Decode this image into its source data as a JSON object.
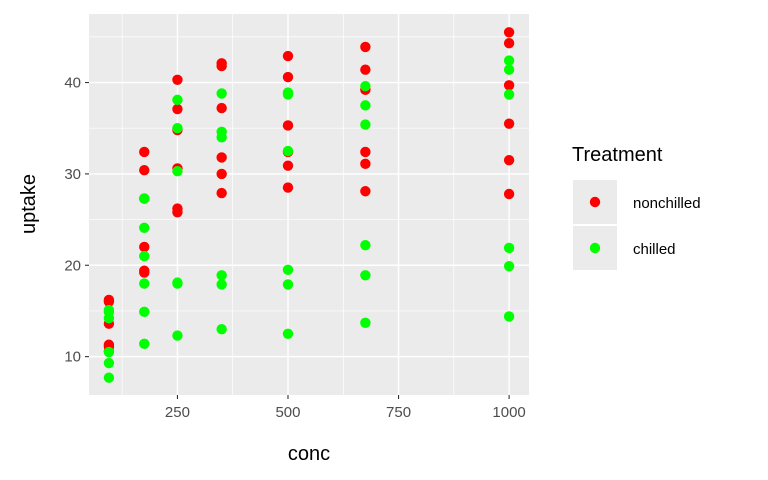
{
  "chart_data": {
    "type": "scatter",
    "xlabel": "conc",
    "ylabel": "uptake",
    "xlim": [
      50,
      1045
    ],
    "ylim": [
      5.8,
      47.5
    ],
    "x_ticks": [
      250,
      500,
      750,
      1000
    ],
    "x_minor_ticks": [
      125,
      375,
      625,
      875
    ],
    "y_ticks": [
      10,
      20,
      30,
      40
    ],
    "y_minor_ticks": [
      15,
      25,
      35,
      45
    ],
    "grid": true,
    "legend": {
      "title": "Treatment",
      "position": "right",
      "entries": [
        {
          "label": "nonchilled",
          "color": "#ff0000"
        },
        {
          "label": "chilled",
          "color": "#00ff00"
        }
      ]
    },
    "series": [
      {
        "name": "nonchilled",
        "color": "#ff0000",
        "points": [
          [
            95,
            16.0
          ],
          [
            95,
            13.6
          ],
          [
            95,
            16.2
          ],
          [
            95,
            11.3
          ],
          [
            95,
            10.6
          ],
          [
            95,
            11.1
          ],
          [
            175,
            30.4
          ],
          [
            175,
            27.3
          ],
          [
            175,
            32.4
          ],
          [
            175,
            19.4
          ],
          [
            175,
            19.2
          ],
          [
            175,
            22.0
          ],
          [
            250,
            34.8
          ],
          [
            250,
            37.1
          ],
          [
            250,
            40.3
          ],
          [
            250,
            25.8
          ],
          [
            250,
            26.2
          ],
          [
            250,
            30.6
          ],
          [
            350,
            37.2
          ],
          [
            350,
            41.8
          ],
          [
            350,
            42.1
          ],
          [
            350,
            30.0
          ],
          [
            350,
            27.9
          ],
          [
            350,
            31.8
          ],
          [
            500,
            35.3
          ],
          [
            500,
            40.6
          ],
          [
            500,
            42.9
          ],
          [
            500,
            32.4
          ],
          [
            500,
            28.5
          ],
          [
            500,
            30.9
          ],
          [
            675,
            39.2
          ],
          [
            675,
            41.4
          ],
          [
            675,
            43.9
          ],
          [
            675,
            31.1
          ],
          [
            675,
            28.1
          ],
          [
            675,
            32.4
          ],
          [
            1000,
            39.7
          ],
          [
            1000,
            44.3
          ],
          [
            1000,
            45.5
          ],
          [
            1000,
            31.5
          ],
          [
            1000,
            27.8
          ],
          [
            1000,
            35.5
          ]
        ]
      },
      {
        "name": "chilled",
        "color": "#00ff00",
        "points": [
          [
            95,
            14.2
          ],
          [
            95,
            15.1
          ],
          [
            95,
            14.9
          ],
          [
            95,
            10.5
          ],
          [
            95,
            9.3
          ],
          [
            95,
            7.7
          ],
          [
            175,
            24.1
          ],
          [
            175,
            21.0
          ],
          [
            175,
            18.0
          ],
          [
            175,
            14.9
          ],
          [
            175,
            11.4
          ],
          [
            175,
            27.3
          ],
          [
            250,
            30.3
          ],
          [
            250,
            38.1
          ],
          [
            250,
            35.0
          ],
          [
            250,
            18.1
          ],
          [
            250,
            18.0
          ],
          [
            250,
            12.3
          ],
          [
            350,
            34.6
          ],
          [
            350,
            34.0
          ],
          [
            350,
            38.8
          ],
          [
            350,
            18.9
          ],
          [
            350,
            17.9
          ],
          [
            350,
            13.0
          ],
          [
            500,
            32.5
          ],
          [
            500,
            38.7
          ],
          [
            500,
            38.9
          ],
          [
            500,
            19.5
          ],
          [
            500,
            17.9
          ],
          [
            500,
            12.5
          ],
          [
            675,
            35.4
          ],
          [
            675,
            37.5
          ],
          [
            675,
            39.6
          ],
          [
            675,
            22.2
          ],
          [
            675,
            18.9
          ],
          [
            675,
            13.7
          ],
          [
            1000,
            38.7
          ],
          [
            1000,
            42.4
          ],
          [
            1000,
            41.4
          ],
          [
            1000,
            21.9
          ],
          [
            1000,
            19.9
          ],
          [
            1000,
            14.4
          ]
        ]
      }
    ]
  }
}
